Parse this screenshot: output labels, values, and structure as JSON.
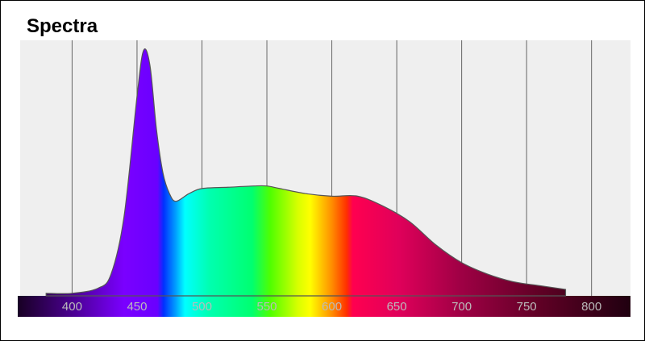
{
  "chart_data": {
    "type": "area",
    "title": "Spectra",
    "x": [
      380,
      400,
      420,
      430,
      440,
      450,
      455,
      460,
      465,
      470,
      475,
      480,
      490,
      500,
      520,
      540,
      550,
      560,
      580,
      600,
      620,
      640,
      660,
      680,
      700,
      720,
      740,
      760,
      780
    ],
    "values": [
      0.01,
      0.01,
      0.03,
      0.085,
      0.31,
      0.78,
      0.96,
      0.9,
      0.65,
      0.48,
      0.4,
      0.37,
      0.4,
      0.42,
      0.425,
      0.43,
      0.43,
      0.42,
      0.4,
      0.39,
      0.39,
      0.35,
      0.29,
      0.2,
      0.13,
      0.085,
      0.055,
      0.04,
      0.025
    ],
    "xlim": [
      360,
      830
    ],
    "ylim": [
      0,
      1
    ],
    "xticks": [
      400,
      450,
      500,
      550,
      600,
      650,
      700,
      750,
      800
    ],
    "grid": true
  }
}
